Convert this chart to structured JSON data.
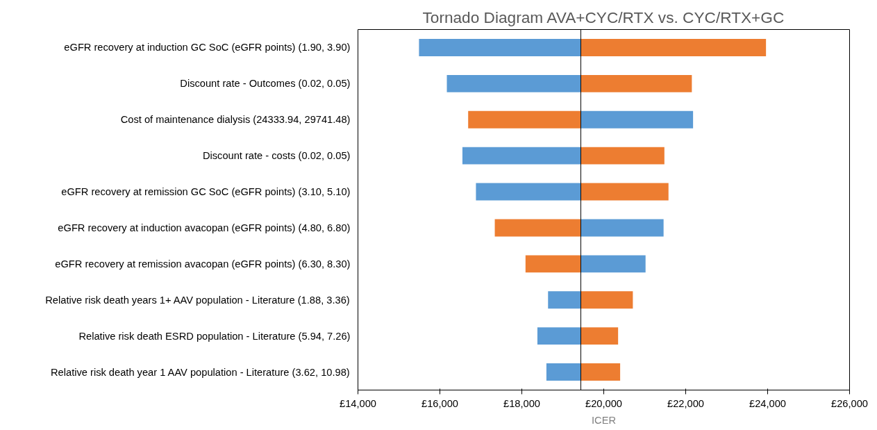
{
  "chart_data": {
    "type": "bar",
    "orientation": "horizontal",
    "title": "Tornado Diagram AVA+CYC/RTX vs. CYC/RTX+GC",
    "xlabel": "ICER",
    "categories": [
      "eGFR recovery at induction GC SoC (eGFR points) (1.90, 3.90)",
      "Discount rate - Outcomes (0.02, 0.05)",
      "Cost of maintenance dialysis (24333.94, 29741.48)",
      "Discount rate - costs (0.02, 0.05)",
      "eGFR recovery at remission GC SoC (eGFR points) (3.10, 5.10)",
      "eGFR recovery at induction avacopan (eGFR points) (4.80, 6.80)",
      "eGFR recovery at remission avacopan (eGFR points) (6.30, 8.30)",
      "Relative risk death years 1+ AAV population - Literature (1.88, 3.36)",
      "Relative risk death ESRD population - Literature (5.94, 7.26)",
      "Relative risk death year 1 AAV population - Literature (3.62, 10.98)"
    ],
    "series": [
      {
        "base": [
          19440,
          19440,
          19440,
          19440,
          19440,
          19440,
          19440,
          19440,
          19440,
          19440
        ],
        "values": [
          -3950,
          -3270,
          -2750,
          -2890,
          -2560,
          -2100,
          -1350,
          -800,
          -1060,
          -840
        ],
        "colors": [
          "#5b9bd5",
          "#5b9bd5",
          "#ed7d31",
          "#5b9bd5",
          "#5b9bd5",
          "#ed7d31",
          "#ed7d31",
          "#5b9bd5",
          "#5b9bd5",
          "#5b9bd5"
        ]
      },
      {
        "base": [
          19440,
          19440,
          19440,
          19440,
          19440,
          19440,
          19440,
          19440,
          19440,
          19440
        ],
        "values": [
          4520,
          2710,
          2740,
          2040,
          2140,
          2020,
          1580,
          1270,
          910,
          960
        ],
        "colors": [
          "#ed7d31",
          "#ed7d31",
          "#5b9bd5",
          "#ed7d31",
          "#ed7d31",
          "#5b9bd5",
          "#5b9bd5",
          "#ed7d31",
          "#ed7d31",
          "#ed7d31"
        ]
      }
    ],
    "xlim": [
      14000,
      26000
    ],
    "xticks": [
      {
        "value": 14000,
        "label": "£14,000"
      },
      {
        "value": 16000,
        "label": "£16,000"
      },
      {
        "value": 18000,
        "label": "£18,000"
      },
      {
        "value": 20000,
        "label": "£20,000"
      },
      {
        "value": 22000,
        "label": "£22,000"
      },
      {
        "value": 24000,
        "label": "£24,000"
      },
      {
        "value": 26000,
        "label": "£26,000"
      }
    ],
    "ref_lines": [
      {
        "axis": "x",
        "value": 19440,
        "color": "#000000"
      }
    ],
    "grid": false
  }
}
